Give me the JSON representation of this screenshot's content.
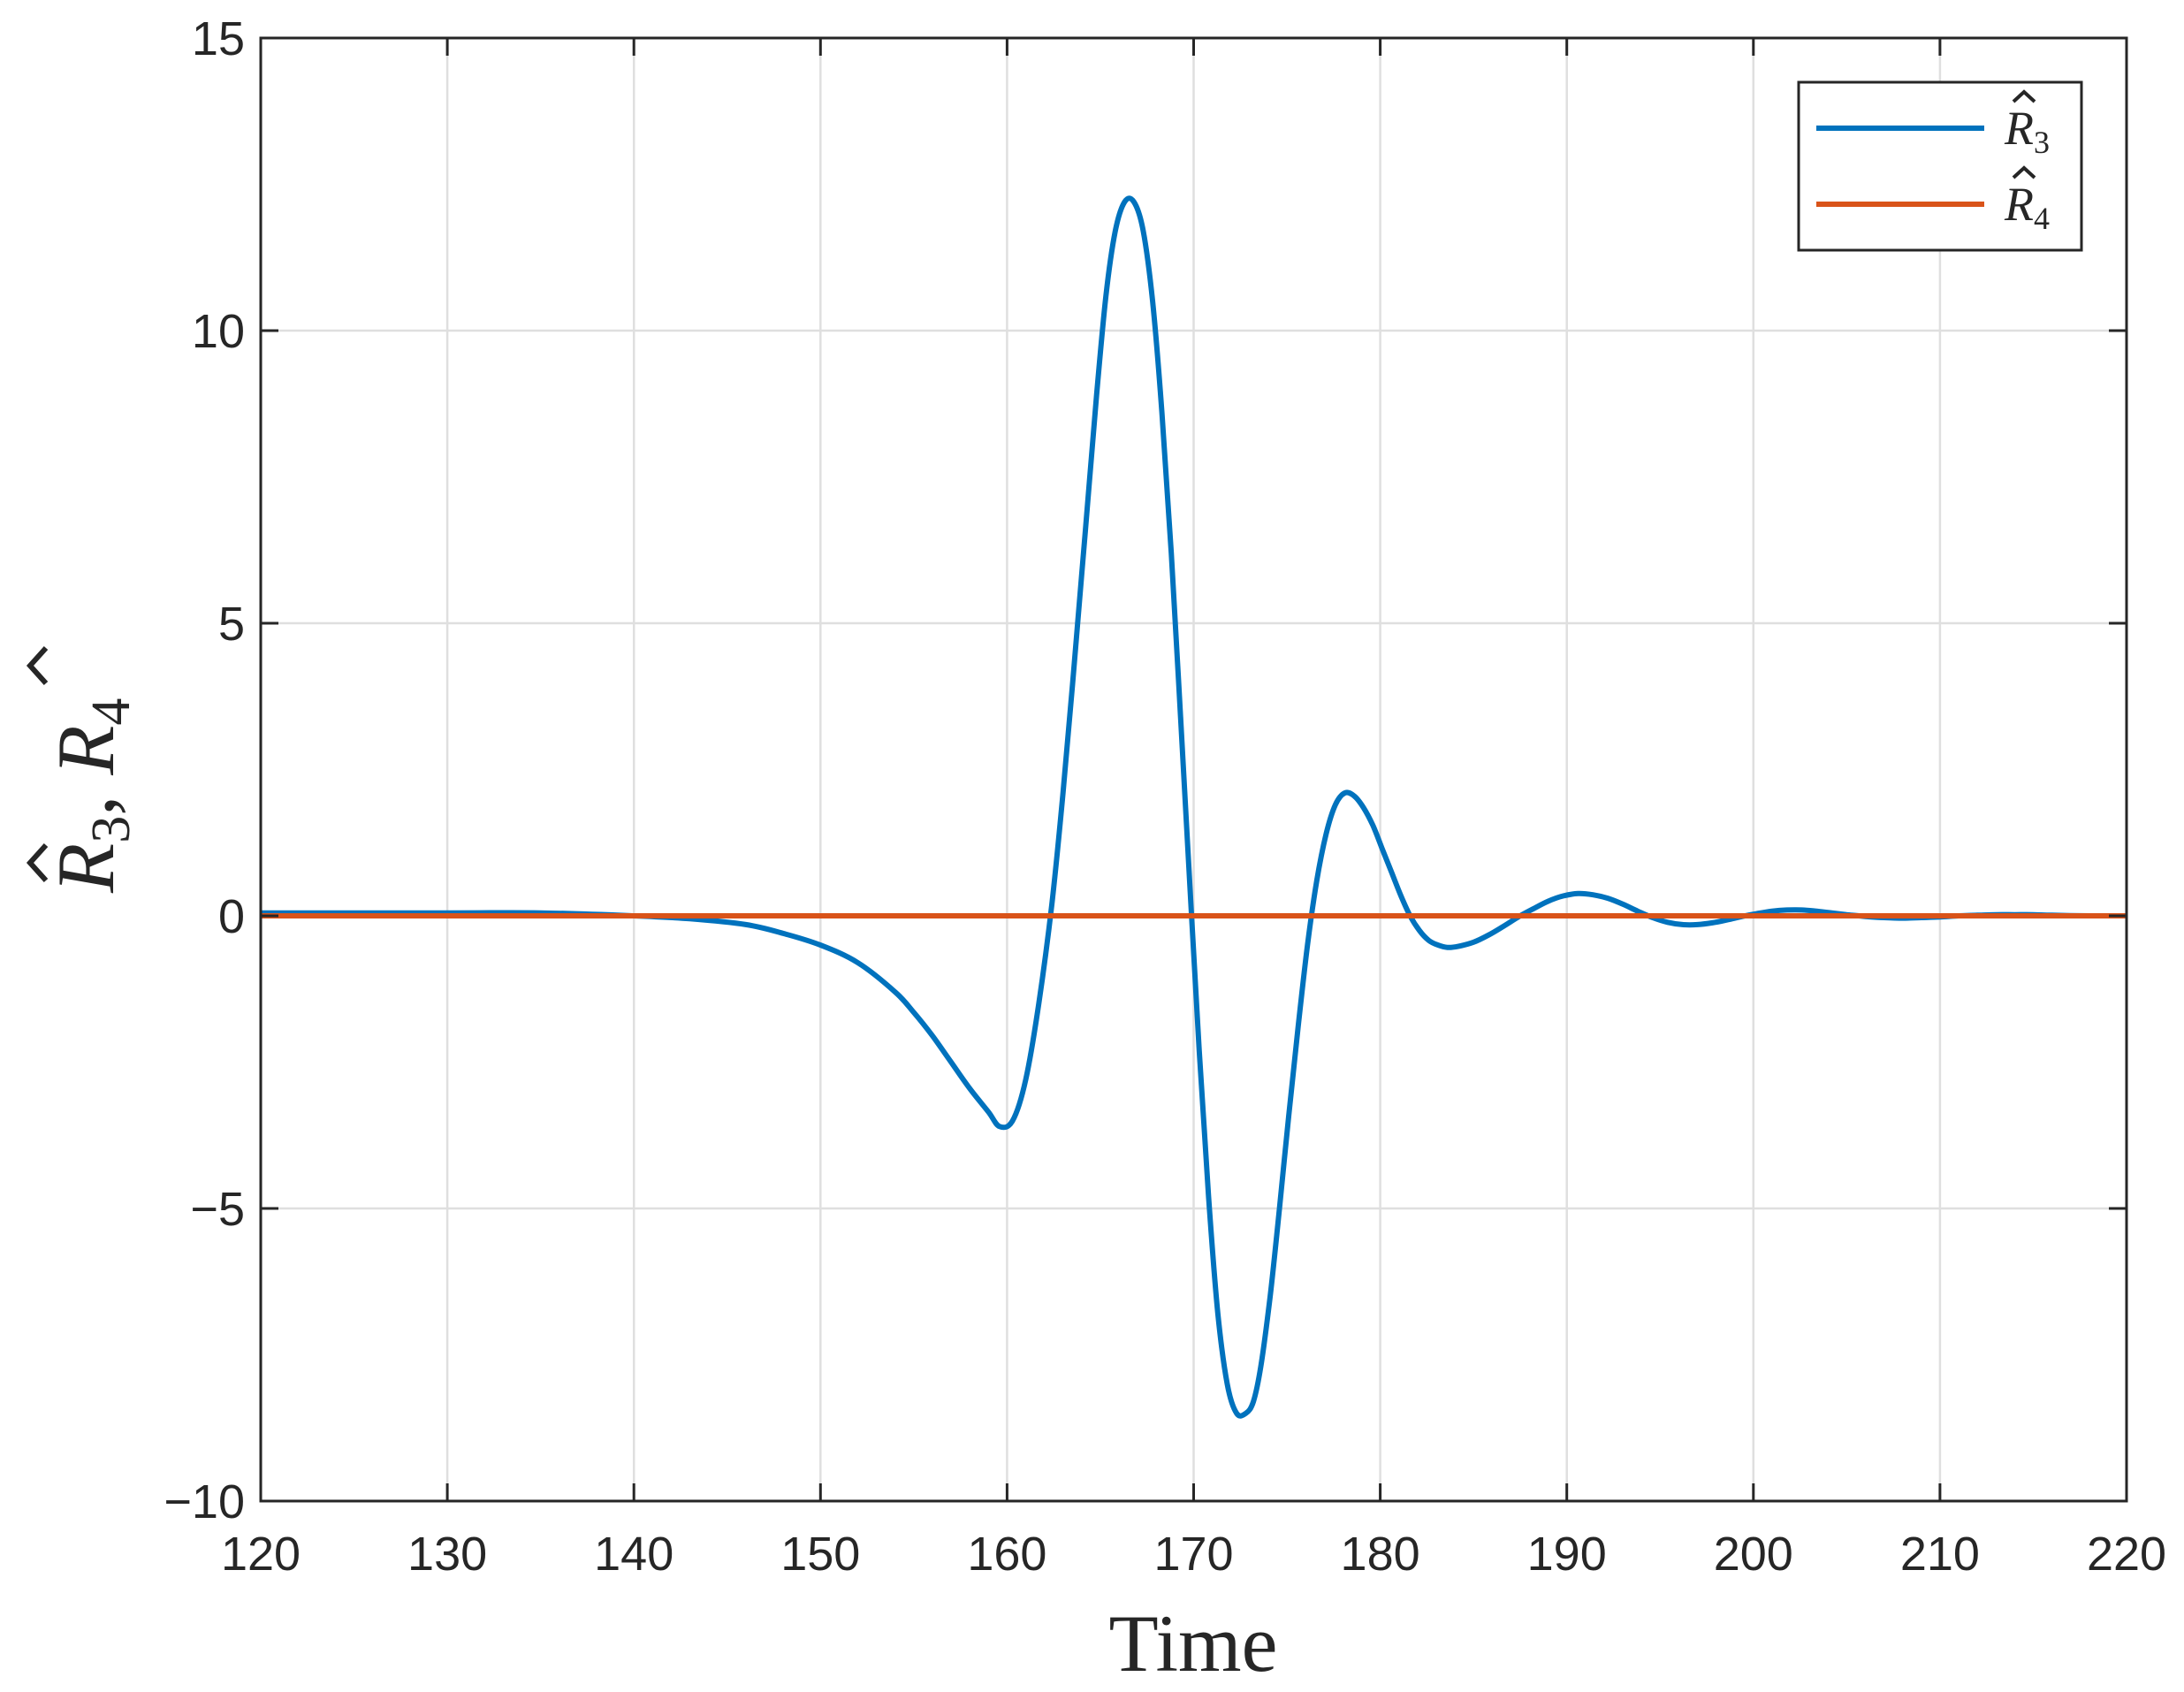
{
  "chart_data": {
    "type": "line",
    "xlabel": "Time",
    "ylabel": {
      "base": "R",
      "subscripts": [
        "3",
        "4"
      ],
      "separator": ", "
    },
    "xlim": [
      120,
      220
    ],
    "ylim": [
      -10,
      15
    ],
    "xticks": [
      120,
      130,
      140,
      150,
      160,
      170,
      180,
      190,
      200,
      210,
      220
    ],
    "yticks": [
      -10,
      -5,
      0,
      5,
      10,
      15
    ],
    "ytick_labels": [
      "−10",
      "−5",
      "0",
      "5",
      "10",
      "15"
    ],
    "grid": true,
    "legend_position": "top-right",
    "series": [
      {
        "name": "R3",
        "label": {
          "base": "R",
          "sub": "3"
        },
        "color": "#0072BD",
        "x": [
          120,
          130,
          135,
          140,
          143,
          146,
          148,
          150,
          152,
          154,
          155,
          156,
          157,
          158,
          159,
          159.6,
          160.3,
          161,
          161.7,
          162.4,
          163,
          163.6,
          164.2,
          164.8,
          165.3,
          165.8,
          166.3,
          166.8,
          167.3,
          167.8,
          168.3,
          168.8,
          169.3,
          169.8,
          170.3,
          170.8,
          171.3,
          171.8,
          172.3,
          172.8,
          173.2,
          173.6,
          174.1,
          174.6,
          175.1,
          175.6,
          176.1,
          176.6,
          177.1,
          177.6,
          178.1,
          178.6,
          179.1,
          179.6,
          180.1,
          180.6,
          181.1,
          181.6,
          182.1,
          182.6,
          183.1,
          183.6,
          184.2,
          185,
          185.8,
          186.6,
          187.4,
          188.2,
          189,
          189.8,
          190.6,
          191.4,
          192.2,
          193,
          193.8,
          194.6,
          195.4,
          196.2,
          197,
          197.8,
          198.6,
          199.4,
          200.2,
          201,
          201.8,
          202.6,
          203.4,
          204.2,
          205,
          206,
          207,
          208,
          209,
          210,
          211,
          212,
          213,
          214,
          215,
          216,
          218,
          220
        ],
        "y": [
          0.05,
          0.05,
          0.05,
          0.0,
          -0.05,
          -0.15,
          -0.3,
          -0.5,
          -0.8,
          -1.3,
          -1.65,
          -2.05,
          -2.5,
          -2.95,
          -3.35,
          -3.6,
          -3.5,
          -2.8,
          -1.5,
          0.2,
          2.1,
          4.3,
          6.6,
          8.9,
          10.6,
          11.7,
          12.2,
          12.2,
          11.7,
          10.5,
          8.6,
          6.2,
          3.4,
          0.5,
          -2.3,
          -4.8,
          -6.8,
          -8.0,
          -8.5,
          -8.5,
          -8.3,
          -7.7,
          -6.5,
          -5.0,
          -3.4,
          -1.9,
          -0.5,
          0.6,
          1.4,
          1.9,
          2.1,
          2.05,
          1.85,
          1.55,
          1.15,
          0.75,
          0.35,
          0.0,
          -0.25,
          -0.42,
          -0.5,
          -0.54,
          -0.52,
          -0.45,
          -0.33,
          -0.18,
          -0.02,
          0.12,
          0.25,
          0.34,
          0.38,
          0.36,
          0.3,
          0.2,
          0.08,
          -0.03,
          -0.11,
          -0.15,
          -0.15,
          -0.12,
          -0.07,
          -0.01,
          0.04,
          0.08,
          0.1,
          0.1,
          0.08,
          0.05,
          0.02,
          -0.01,
          -0.03,
          -0.04,
          -0.03,
          -0.02,
          0.0,
          0.01,
          0.02,
          0.02,
          0.02,
          0.01,
          0.0,
          0.0
        ]
      },
      {
        "name": "R4",
        "label": {
          "base": "R",
          "sub": "4"
        },
        "color": "#D95319",
        "x": [
          120,
          220
        ],
        "y": [
          0,
          0
        ]
      }
    ]
  }
}
